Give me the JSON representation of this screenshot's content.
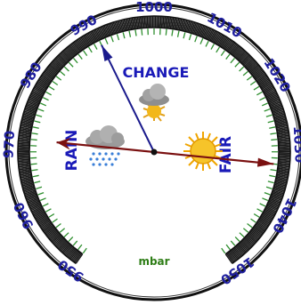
{
  "gauge": {
    "title": "",
    "unit": "mbar",
    "scale": {
      "min": 950,
      "max": 1050,
      "major_step": 10,
      "start_angle_deg": 215,
      "sweep_deg": 290
    },
    "tick_labels": [
      "950",
      "960",
      "970",
      "980",
      "990",
      "1000",
      "1010",
      "1020",
      "1030",
      "1040",
      "1050"
    ],
    "needles": [
      {
        "name": "blue",
        "value": 991,
        "color": "#1a1a8c"
      },
      {
        "name": "red",
        "value": 1033,
        "color": "#7a1010"
      }
    ],
    "zones": {
      "rain_label": "RAIN",
      "change_label": "CHANGE",
      "fair_label": "FAIR"
    },
    "icons": [
      "rain-cloud-icon",
      "sun-behind-cloud-icon",
      "sun-icon"
    ],
    "colors": {
      "rim": "#111111",
      "dial": "#ffffff",
      "text_numbers": "#1e1e9e",
      "text_unit": "#2e7d16",
      "text_zone": "#1a1ab8",
      "minor_ticks": "#1a1a1a",
      "major_ticks": "#2f8f2f"
    }
  }
}
